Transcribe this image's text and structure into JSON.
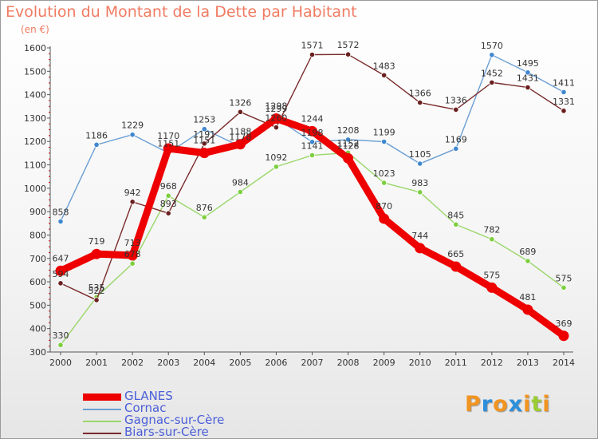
{
  "title": "Evolution du Montant de la Dette par Habitant",
  "unit": "(en €)",
  "logo": {
    "text": "Proxiti",
    "letters": [
      {
        "ch": "P",
        "color": "#f29420"
      },
      {
        "ch": "r",
        "color": "#2c8fdc"
      },
      {
        "ch": "o",
        "color": "#f29420"
      },
      {
        "ch": "x",
        "color": "#2c8fdc"
      },
      {
        "ch": "i",
        "color": "#f29420"
      },
      {
        "ch": "t",
        "color": "#9acd32"
      },
      {
        "ch": "i",
        "color": "#f29420"
      }
    ]
  },
  "chart_data": {
    "type": "line",
    "x": [
      2000,
      2001,
      2002,
      2003,
      2004,
      2005,
      2006,
      2007,
      2008,
      2009,
      2010,
      2011,
      2012,
      2013,
      2014
    ],
    "x_tick_labels": [
      "2000",
      "2001",
      "2002",
      "2003",
      "2004",
      "2005",
      "2006",
      "2007",
      "2008",
      "2009",
      "2010",
      "2011",
      "2012",
      "2013",
      "2014"
    ],
    "ylim": [
      300,
      1600
    ],
    "y_ticks": [
      300,
      400,
      500,
      600,
      700,
      800,
      900,
      1000,
      1100,
      1200,
      1300,
      1400,
      1500,
      1600
    ],
    "y_tick_labels": [
      "300",
      "400",
      "500",
      "600",
      "700",
      "800",
      "900",
      "1000",
      "1100",
      "1200",
      "1300",
      "1400",
      "1500",
      "1600"
    ],
    "grid": false,
    "legend_placement": "bottom-left",
    "series": [
      {
        "name": "Cornac",
        "color": "#6a9fd4",
        "marker_color": "#3f87cf",
        "values": [
          858,
          1186,
          1229,
          1151,
          1253,
          1178,
          1299,
          1198,
          1208,
          1199,
          1105,
          1169,
          1570,
          1495,
          1411
        ],
        "labels": [
          "858",
          "1186",
          "1229",
          "1151",
          "1253",
          "1178",
          "1299",
          "1198",
          "1208",
          "1199",
          "1105",
          "1169",
          "1570",
          "1495",
          "1411"
        ]
      },
      {
        "name": "Gagnac-sur-Cère",
        "color": "#9ad66a",
        "marker_color": "#7ccf3f",
        "values": [
          330,
          535,
          678,
          968,
          876,
          984,
          1092,
          1141,
          1152,
          1023,
          983,
          845,
          782,
          689,
          575
        ],
        "labels": [
          "330",
          "535",
          "678",
          "968",
          "876",
          "984",
          "1092",
          "1141",
          "1152",
          "1023",
          "983",
          "845",
          "782",
          "689",
          "575"
        ]
      },
      {
        "name": "Biars-sur-Cère",
        "color": "#7a2a2a",
        "marker_color": "#6a1f1f",
        "values": [
          594,
          522,
          942,
          893,
          1191,
          1326,
          1260,
          1571,
          1572,
          1483,
          1366,
          1336,
          1452,
          1431,
          1331
        ],
        "labels": [
          "594",
          "522",
          "942",
          "893",
          "1191",
          "1326",
          "1260",
          "1571",
          "1572",
          "1483",
          "1366",
          "1336",
          "1452",
          "1431",
          "1331"
        ]
      },
      {
        "name": "GLANES",
        "color": "#ee0000",
        "marker_color": "#ee0000",
        "values": [
          647,
          719,
          713,
          1170,
          1151,
          1188,
          1298,
          1244,
          1128,
          870,
          744,
          665,
          575,
          481,
          369
        ],
        "labels": [
          "647",
          "719",
          "713",
          "1170",
          "1151",
          "1188",
          "1298",
          "1244",
          "1128",
          "870",
          "744",
          "665",
          "575",
          "481",
          "369"
        ]
      }
    ],
    "legend": [
      {
        "name": "GLANES",
        "color": "#ee0000",
        "thick": true
      },
      {
        "name": "Cornac",
        "color": "#6a9fd4",
        "thick": false
      },
      {
        "name": "Gagnac-sur-Cère",
        "color": "#9ad66a",
        "thick": false
      },
      {
        "name": "Biars-sur-Cère",
        "color": "#7a2a2a",
        "thick": false
      }
    ]
  }
}
